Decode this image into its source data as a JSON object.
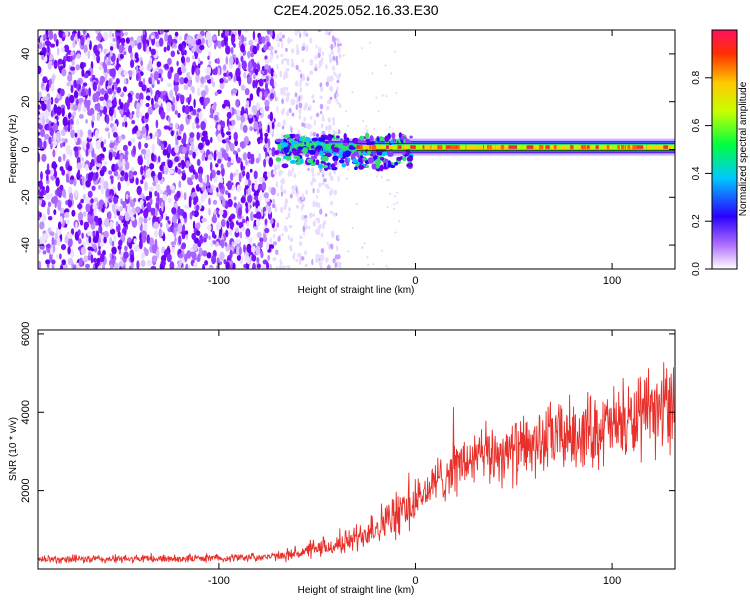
{
  "chart_data": [
    {
      "type": "heatmap",
      "title": "C2E4.2025.052.16.33.E30",
      "xlabel": "Height of straight line (km)",
      "ylabel": "Frequency (Hz)",
      "xlim": [
        -192,
        132
      ],
      "ylim": [
        -50,
        50
      ],
      "xticks": [
        -100,
        0,
        100
      ],
      "yticks": [
        -40,
        -20,
        0,
        20,
        40
      ],
      "colorbar": {
        "label": "Normalized spectral amplitude",
        "range": [
          0,
          1
        ],
        "ticks": [
          0.0,
          0.2,
          0.4,
          0.6,
          0.8
        ]
      },
      "features": {
        "noise_region_end_km": -72,
        "fringe_region_end_km": -38,
        "signal_band_center_hz": 1,
        "signal_band_halfwidth_hz": 1.5
      }
    },
    {
      "type": "line",
      "xlabel": "Height of straight line (km)",
      "ylabel": "SNR (10 * v/v)",
      "xlim": [
        -192,
        132
      ],
      "ylim": [
        0,
        6100
      ],
      "xticks": [
        -100,
        0,
        100
      ],
      "yticks": [
        2000,
        4000,
        6000
      ],
      "line_color": "#e8302b",
      "trend": {
        "x": [
          -192,
          -150,
          -100,
          -70,
          -55,
          -40,
          -30,
          -20,
          -10,
          0,
          10,
          20,
          30,
          40,
          50,
          60,
          70,
          80,
          90,
          100,
          110,
          120,
          125,
          130
        ],
        "y": [
          250,
          250,
          280,
          320,
          450,
          600,
          800,
          1100,
          1350,
          1700,
          2200,
          2600,
          2800,
          2950,
          3000,
          3150,
          3350,
          3450,
          3550,
          3650,
          3750,
          3900,
          4100,
          4300
        ]
      }
    }
  ]
}
